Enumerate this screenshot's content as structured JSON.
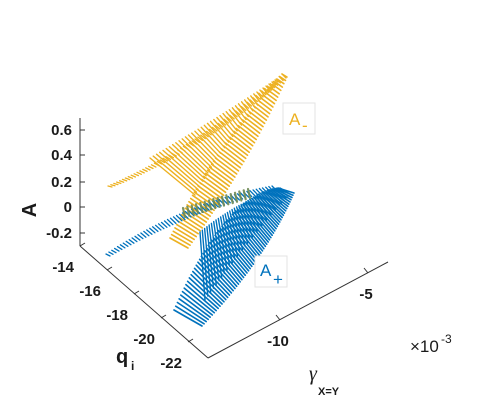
{
  "chart_data": {
    "type": "3d-surface",
    "title": "",
    "axes": {
      "x": {
        "label": "γ",
        "label_subscript": "X=Y",
        "ticks": [
          "-10",
          "-5"
        ],
        "multiplier": "×10",
        "multiplier_exponent": "-3"
      },
      "y": {
        "label": "q",
        "label_subscript": "i",
        "ticks": [
          "-14",
          "-16",
          "-18",
          "-20",
          "-22"
        ],
        "range": [
          -22,
          -14
        ]
      },
      "z": {
        "label": "A",
        "ticks": [
          "0.6",
          "0.4",
          "0.2",
          "0",
          "-0.2"
        ],
        "range": [
          -0.3,
          0.7
        ]
      }
    },
    "series": [
      {
        "name": "A",
        "name_subscript": "-",
        "color": "#EDB120"
      },
      {
        "name": "A",
        "name_subscript": "+",
        "color": "#0072BD"
      }
    ],
    "grid": false,
    "box": false
  }
}
